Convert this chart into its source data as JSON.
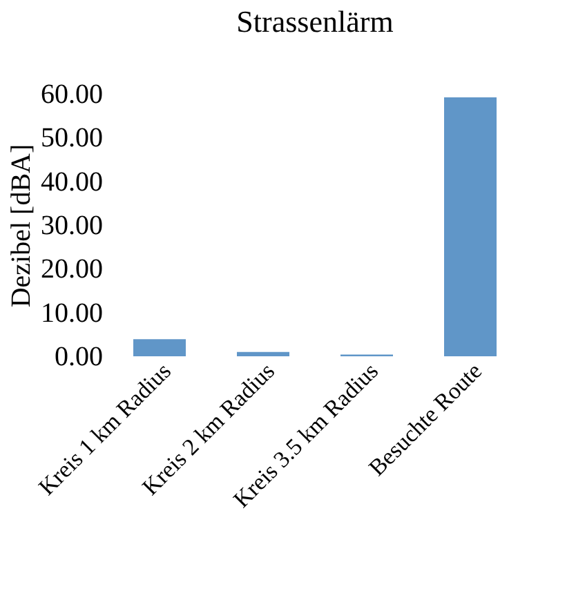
{
  "chart_data": {
    "type": "bar",
    "title": "Strassenlärm",
    "ylabel": "Dezibel [dBA]",
    "categories": [
      "Kreis 1 km Radius",
      "Kreis 2 km Radius",
      "Kreis 3.5 km Radius",
      "Besuchte Route"
    ],
    "values": [
      3.9,
      1.0,
      0.4,
      59.2
    ],
    "color": "#6096c8",
    "ylim": [
      0,
      60
    ],
    "yticks": [
      {
        "value": 0,
        "label": "0.00"
      },
      {
        "value": 10,
        "label": "10.00"
      },
      {
        "value": 20,
        "label": "20.00"
      },
      {
        "value": 30,
        "label": "30.00"
      },
      {
        "value": 40,
        "label": "40.00"
      },
      {
        "value": 50,
        "label": "50.00"
      },
      {
        "value": 60,
        "label": "60.00"
      }
    ],
    "grid": false
  }
}
